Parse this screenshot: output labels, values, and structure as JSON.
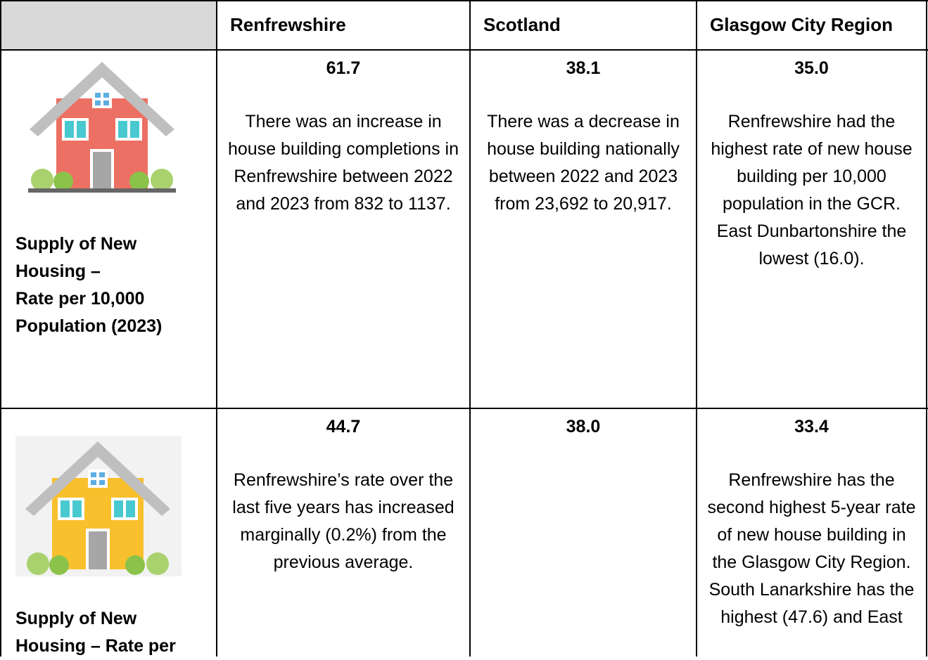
{
  "table": {
    "columns": [
      "Renfrewshire",
      "Scotland",
      "Glasgow City Region"
    ],
    "rows": [
      {
        "label": [
          "Supply of New Housing –",
          "Rate per 10,000 Population (2023)"
        ],
        "cells": [
          {
            "value": "61.7",
            "text": "There was an increase in house building completions in Renfrewshire between 2022 and 2023 from 832 to 1137."
          },
          {
            "value": "38.1",
            "text": "There was a decrease in house building nationally between 2022 and 2023 from 23,692 to 20,917."
          },
          {
            "value": "35.0",
            "text": "Renfrewshire had the highest rate of new house building per 10,000 population in the GCR. East Dunbartonshire the lowest (16.0)."
          }
        ]
      },
      {
        "label": [
          "Supply of New Housing – Rate per"
        ],
        "cells": [
          {
            "value": "44.7",
            "text": "Renfrewshire’s rate over the last five years has increased marginally (0.2%) from the previous average."
          },
          {
            "value": "38.0"
          },
          {
            "value": "33.4",
            "text": "Renfrewshire has the second highest 5-year rate of new house building in the Glasgow City Region. South Lanarkshire has the highest (47.6) and East"
          }
        ]
      }
    ]
  }
}
